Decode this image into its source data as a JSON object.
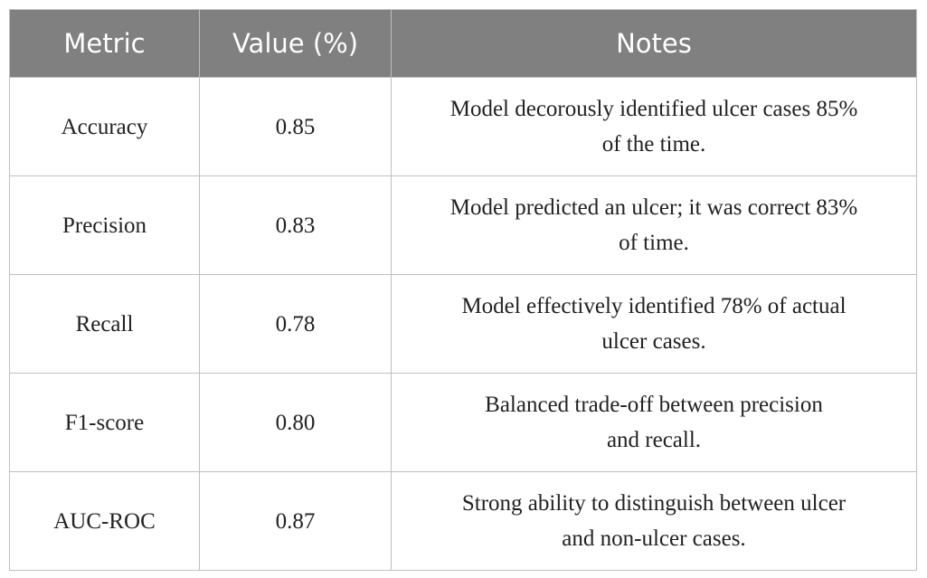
{
  "table": {
    "header": [
      "Metric",
      "Value (%)",
      "Notes"
    ],
    "rows": [
      [
        "Accuracy",
        "0.85",
        [
          "Model decorously identified ulcer cases 85%",
          "of the time."
        ]
      ],
      [
        "Precision",
        "0.83",
        [
          "Model predicted an ulcer; it was correct 83%",
          "of time."
        ]
      ],
      [
        "Recall",
        "0.78",
        [
          "Model effectively identified 78% of actual",
          "ulcer cases."
        ]
      ],
      [
        "F1-score",
        "0.80",
        [
          "Balanced trade-off between precision",
          "and recall."
        ]
      ],
      [
        "AUC-ROC",
        "0.87",
        [
          "Strong ability to distinguish between ulcer",
          "and non-ulcer cases."
        ]
      ]
    ]
  }
}
